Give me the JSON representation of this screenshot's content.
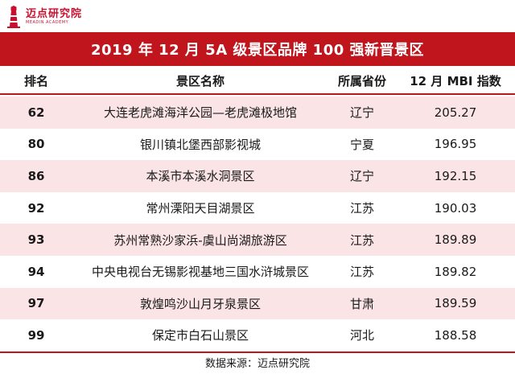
{
  "logo": {
    "name": "迈点研究院",
    "subtitle": "MEADIN ACADEMY",
    "icon": "lighthouse-icon"
  },
  "title": "2019 年 12 月 5A 级景区品牌 100 强新晋景区",
  "columns": {
    "rank": "排名",
    "name": "景区名称",
    "province": "所属省份",
    "index": "12 月 MBI 指数"
  },
  "rows": [
    {
      "rank": "62",
      "name": "大连老虎滩海洋公园—老虎滩极地馆",
      "province": "辽宁",
      "index": "205.27"
    },
    {
      "rank": "80",
      "name": "银川镇北堡西部影视城",
      "province": "宁夏",
      "index": "196.95"
    },
    {
      "rank": "86",
      "name": "本溪市本溪水洞景区",
      "province": "辽宁",
      "index": "192.15"
    },
    {
      "rank": "92",
      "name": "常州溧阳天目湖景区",
      "province": "江苏",
      "index": "190.03"
    },
    {
      "rank": "93",
      "name": "苏州常熟沙家浜-虞山尚湖旅游区",
      "province": "江苏",
      "index": "189.89"
    },
    {
      "rank": "94",
      "name": "中央电视台无锡影视基地三国水浒城景区",
      "province": "江苏",
      "index": "189.82"
    },
    {
      "rank": "97",
      "name": "敦煌鸣沙山月牙泉景区",
      "province": "甘肃",
      "index": "189.59"
    },
    {
      "rank": "99",
      "name": "保定市白石山景区",
      "province": "河北",
      "index": "188.58"
    }
  ],
  "source": "数据来源：迈点研究院",
  "colors": {
    "accent": "#c0151d",
    "stripe": "#fbe4e6"
  }
}
